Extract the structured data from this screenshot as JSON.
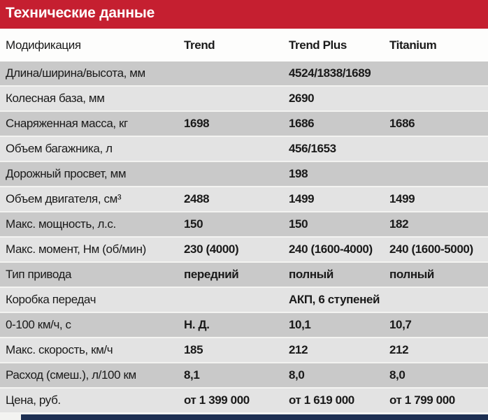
{
  "title": "Технические данные",
  "colors": {
    "header_red": "#c51f30",
    "title_text": "#ffffff",
    "row_dark": "#c9c9c9",
    "row_light": "#e3e3e3",
    "text": "#1a1a1a",
    "bottom_bar_navy": "#1d2f52"
  },
  "table": {
    "columns": [
      "Модификация",
      "Trend",
      "Trend Plus",
      "Titanium"
    ],
    "rows": [
      {
        "label": "Длина/ширина/высота, мм",
        "values": [
          "",
          "4524/1838/1689",
          ""
        ]
      },
      {
        "label": "Колесная база, мм",
        "values": [
          "",
          "2690",
          ""
        ]
      },
      {
        "label": "Снаряженная масса, кг",
        "values": [
          "1698",
          "1686",
          "1686"
        ]
      },
      {
        "label": "Объем багажника, л",
        "values": [
          "",
          "456/1653",
          ""
        ]
      },
      {
        "label": "Дорожный просвет, мм",
        "values": [
          "",
          "198",
          ""
        ]
      },
      {
        "label": "Объем двигателя, см³",
        "values": [
          "2488",
          "1499",
          "1499"
        ]
      },
      {
        "label": "Макс. мощность, л.с.",
        "values": [
          "150",
          "150",
          "182"
        ]
      },
      {
        "label": "Макс. момент, Нм (об/мин)",
        "values": [
          "230 (4000)",
          "240 (1600-4000)",
          "240 (1600-5000)"
        ]
      },
      {
        "label": "Тип привода",
        "values": [
          "передний",
          "полный",
          "полный"
        ]
      },
      {
        "label": "Коробка передач",
        "values": [
          "",
          "АКП, 6 ступеней",
          ""
        ]
      },
      {
        "label": "0-100 км/ч, с",
        "values": [
          "Н. Д.",
          "10,1",
          "10,7"
        ]
      },
      {
        "label": "Макс. скорость, км/ч",
        "values": [
          "185",
          "212",
          "212"
        ]
      },
      {
        "label": "Расход (смеш.), л/100 км",
        "values": [
          "8,1",
          "8,0",
          "8,0"
        ]
      },
      {
        "label": "Цена, руб.",
        "values": [
          "от 1 399 000",
          "от 1 619 000",
          "от 1 799 000"
        ]
      }
    ]
  }
}
